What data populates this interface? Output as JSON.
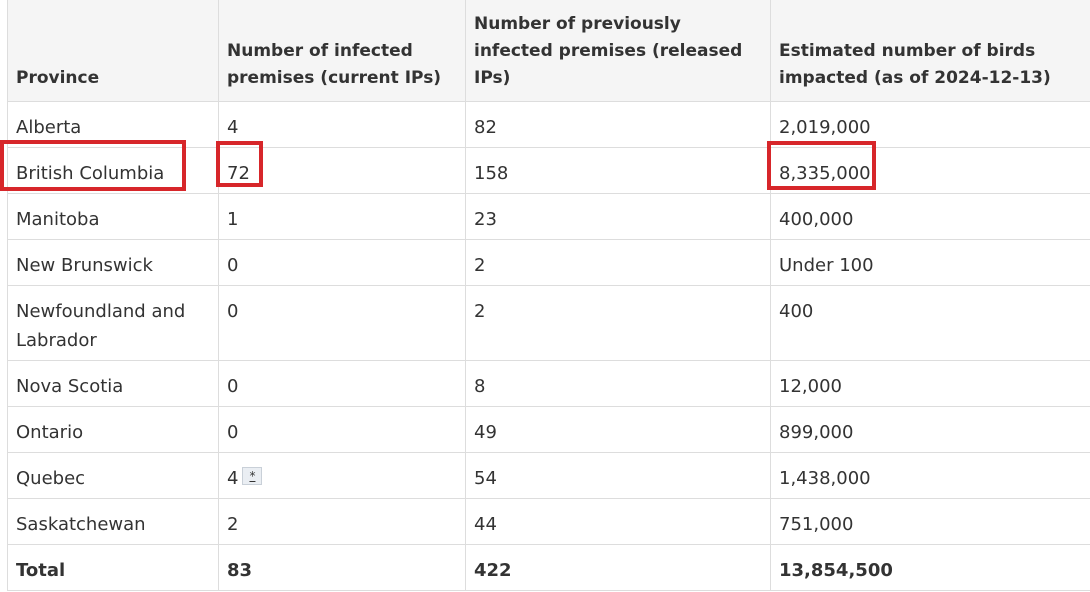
{
  "table": {
    "headers": [
      "Province",
      "Number of infected premises (current IPs)",
      "Number of previously infected premises (released IPs)",
      "Estimated number of birds impacted (as of 2024-12-13)"
    ],
    "rows": [
      [
        "Alberta",
        "4",
        "82",
        "2,019,000"
      ],
      [
        "British Columbia",
        "72",
        "158",
        "8,335,000"
      ],
      [
        "Manitoba",
        "1",
        "23",
        "400,000"
      ],
      [
        "New Brunswick",
        "0",
        "2",
        "Under 100"
      ],
      [
        "Newfoundland and Labrador",
        "0",
        "2",
        "400"
      ],
      [
        "Nova Scotia",
        "0",
        "8",
        "12,000"
      ],
      [
        "Ontario",
        "0",
        "49",
        "899,000"
      ],
      [
        "Quebec",
        "4",
        "54",
        "1,438,000"
      ],
      [
        "Saskatchewan",
        "2",
        "44",
        "751,000"
      ]
    ],
    "footnote_marker": "*",
    "total": [
      "Total",
      "83",
      "422",
      "13,854,500"
    ]
  }
}
